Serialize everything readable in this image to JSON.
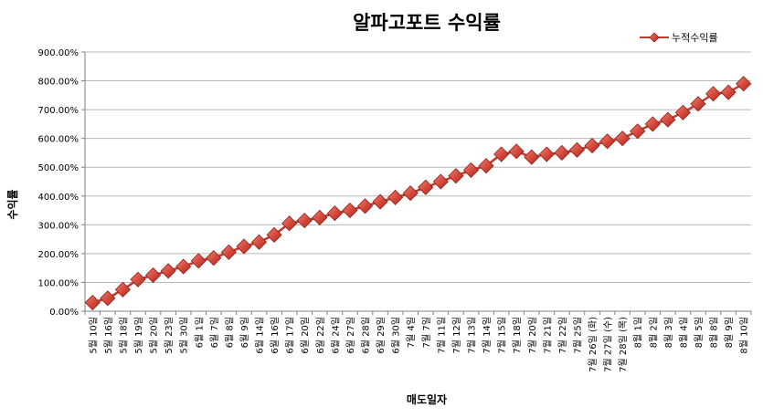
{
  "chart_data": {
    "type": "line",
    "title": "알파고포트 수익률",
    "xlabel": "매도일자",
    "ylabel": "수익률",
    "ylim": [
      0,
      900
    ],
    "y_ticks": [
      "0.00%",
      "100.00%",
      "200.00%",
      "300.00%",
      "400.00%",
      "500.00%",
      "600.00%",
      "700.00%",
      "800.00%",
      "900.00%"
    ],
    "grid": "horizontal",
    "legend_position": "top-right",
    "categories": [
      "5월 10일",
      "5월 16일",
      "5월 18일",
      "5월 19일",
      "5월 20일",
      "5월 23일",
      "5월 30일",
      "6월 1일",
      "6월 7일",
      "6월 8일",
      "6월 9일",
      "6월 14일",
      "6월 16일",
      "6월 17일",
      "6월 20일",
      "6월 22일",
      "6월 24일",
      "6월 27일",
      "6월 28일",
      "6월 29일",
      "6월 30일",
      "7월 4일",
      "7월 7일",
      "7월 11일",
      "7월 12일",
      "7월 13일",
      "7월 14일",
      "7월 15일",
      "7월 18일",
      "7월 20일",
      "7월 21일",
      "7월 22일",
      "7월 25일",
      "7월 26일 (화)",
      "7월 27일 (수)",
      "7월 28일 (목)",
      "8월 1일",
      "8월 2일",
      "8월 3일",
      "8월 4일",
      "8월 5일",
      "8월 8일",
      "8월 9일",
      "8월 10일"
    ],
    "series": [
      {
        "name": "누적수익률",
        "color": "#c0392b",
        "marker": "diamond",
        "values": [
          30,
          45,
          75,
          110,
          125,
          140,
          155,
          175,
          185,
          205,
          225,
          240,
          265,
          305,
          315,
          325,
          340,
          350,
          365,
          380,
          395,
          410,
          430,
          450,
          470,
          490,
          505,
          545,
          555,
          535,
          545,
          550,
          560,
          575,
          590,
          600,
          625,
          650,
          665,
          690,
          720,
          755,
          760,
          790
        ]
      }
    ]
  }
}
